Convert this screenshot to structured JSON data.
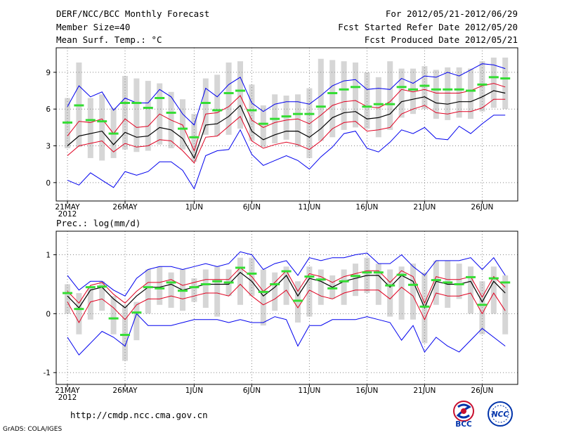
{
  "header": {
    "title": "DERF/NCC/BCC Monthly Forecast",
    "member": "Member Size=40",
    "variable1": "Mean Surf. Temp.: °C",
    "period": "For 2012/05/21-2012/06/29",
    "started": "Fcst Started Refer Date 2012/05/20",
    "produced": "Fcst Produced Date 2012/05/21"
  },
  "footer": {
    "url": "http://cmdp.ncc.cma.gov.cn",
    "credit": "GrADS: COLA/IGES",
    "logo_bcc": "BCC",
    "logo_ncc": "NCC"
  },
  "colors": {
    "mean": "#000000",
    "spread": "#e00020",
    "range": "#0000ee",
    "obs": "#33dd33",
    "box": "#d6d6d6"
  },
  "chart_data": [
    {
      "type": "line",
      "title": "Mean Surf. Temp.: °C",
      "xlabel": "",
      "ylabel": "°C",
      "x_ticks": [
        "21MAY\n2012",
        "26MAY",
        "1JUN",
        "6JUN",
        "11JUN",
        "16JUN",
        "21JUN",
        "26JUN"
      ],
      "x_tick_days": [
        0,
        5,
        11,
        16,
        21,
        26,
        31,
        36
      ],
      "ylim": [
        -1.5,
        11
      ],
      "y_ticks": [
        0,
        3,
        6,
        9
      ],
      "days": 39,
      "series": [
        {
          "name": "ensemble max",
          "values": [
            0.2,
            -0.2,
            0.8,
            0.2,
            -0.4,
            0.9,
            0.6,
            0.9,
            1.7,
            1.7,
            1.0,
            -0.5,
            2.2,
            2.6,
            2.7,
            4.3,
            2.3,
            1.4,
            1.8,
            2.2,
            1.8,
            1.1,
            2.1,
            2.9,
            4.0,
            4.2,
            2.8,
            2.5,
            3.3,
            4.3,
            4.0,
            4.5,
            3.6,
            3.5,
            4.6,
            4.0,
            4.8,
            5.5,
            5.5
          ]
        },
        {
          "name": "ensemble top",
          "values": [
            6.2,
            7.9,
            7.0,
            7.4,
            5.9,
            6.9,
            6.5,
            6.5,
            7.6,
            7.0,
            5.6,
            4.7,
            7.7,
            7.0,
            8.0,
            8.6,
            6.5,
            5.8,
            6.4,
            6.6,
            6.6,
            6.4,
            7.1,
            7.9,
            8.3,
            8.4,
            7.6,
            7.7,
            7.6,
            8.5,
            8.1,
            8.7,
            8.6,
            9.0,
            8.7,
            9.2,
            9.7,
            9.6,
            9.3
          ]
        },
        {
          "name": "ensemble mean",
          "values": [
            3.0,
            3.8,
            4.0,
            4.2,
            3.1,
            4.1,
            3.7,
            3.8,
            4.5,
            4.3,
            3.6,
            2.0,
            4.7,
            4.8,
            5.4,
            6.3,
            4.2,
            3.5,
            3.9,
            4.2,
            4.2,
            3.7,
            4.4,
            5.3,
            5.7,
            5.8,
            5.2,
            5.3,
            5.6,
            6.6,
            6.8,
            7.0,
            6.5,
            6.4,
            6.6,
            6.6,
            7.0,
            7.5,
            7.3
          ]
        },
        {
          "name": "spread upper",
          "values": [
            3.8,
            5.0,
            4.9,
            5.2,
            4.0,
            5.2,
            4.5,
            4.6,
            5.6,
            5.1,
            4.7,
            2.6,
            5.6,
            5.7,
            6.2,
            7.1,
            5.1,
            4.5,
            4.9,
            5.1,
            5.2,
            4.8,
            5.5,
            6.3,
            6.6,
            6.7,
            6.2,
            6.1,
            6.6,
            7.6,
            7.4,
            7.6,
            7.3,
            7.3,
            7.3,
            7.5,
            7.9,
            8.1,
            7.8
          ]
        },
        {
          "name": "spread lower",
          "values": [
            2.2,
            3.0,
            3.2,
            3.4,
            2.5,
            3.2,
            2.9,
            3.0,
            3.5,
            3.4,
            2.6,
            1.6,
            3.7,
            3.8,
            4.6,
            5.4,
            3.4,
            2.8,
            3.1,
            3.3,
            3.1,
            2.7,
            3.4,
            4.4,
            4.9,
            5.0,
            4.2,
            4.3,
            4.5,
            5.6,
            6.0,
            6.3,
            5.7,
            5.6,
            5.8,
            5.8,
            6.1,
            6.8,
            6.8
          ]
        },
        {
          "name": "member mean (green)",
          "values": [
            4.9,
            6.3,
            5.1,
            5.0,
            4.0,
            6.5,
            6.5,
            6.1,
            6.9,
            5.7,
            4.4,
            3.7,
            6.5,
            5.9,
            7.3,
            7.5,
            5.9,
            4.8,
            5.2,
            5.4,
            5.6,
            5.6,
            6.2,
            7.3,
            7.6,
            7.8,
            6.2,
            6.4,
            6.4,
            7.8,
            7.6,
            7.9,
            7.6,
            7.6,
            7.6,
            7.5,
            8.0,
            8.6,
            8.5
          ]
        }
      ],
      "box_ranges": [
        [
          2.8,
          6.9
        ],
        [
          2.9,
          9.8
        ],
        [
          2.0,
          6.9
        ],
        [
          1.8,
          7.2
        ],
        [
          2.0,
          6.1
        ],
        [
          2.7,
          8.7
        ],
        [
          2.5,
          8.5
        ],
        [
          2.6,
          8.3
        ],
        [
          3.1,
          8.1
        ],
        [
          2.8,
          7.4
        ],
        [
          2.7,
          6.8
        ],
        [
          1.7,
          5.6
        ],
        [
          3.9,
          8.5
        ],
        [
          3.8,
          8.8
        ],
        [
          3.9,
          9.8
        ],
        [
          4.4,
          9.9
        ],
        [
          3.4,
          8.0
        ],
        [
          2.9,
          6.3
        ],
        [
          3.2,
          7.2
        ],
        [
          3.5,
          7.1
        ],
        [
          2.9,
          7.2
        ],
        [
          2.0,
          7.7
        ],
        [
          3.4,
          10.1
        ],
        [
          3.7,
          10.0
        ],
        [
          4.3,
          9.9
        ],
        [
          4.5,
          9.8
        ],
        [
          4.4,
          9.0
        ],
        [
          3.7,
          8.6
        ],
        [
          4.3,
          9.9
        ],
        [
          5.3,
          9.3
        ],
        [
          5.6,
          9.3
        ],
        [
          6.0,
          9.5
        ],
        [
          5.2,
          9.2
        ],
        [
          5.1,
          9.4
        ],
        [
          5.3,
          9.4
        ],
        [
          5.2,
          9.3
        ],
        [
          5.8,
          9.9
        ],
        [
          6.1,
          10.2
        ],
        [
          6.0,
          10.2
        ]
      ]
    },
    {
      "type": "line",
      "title": "Prec.: log(mm/d)",
      "xlabel": "",
      "ylabel": "log(mm/d)",
      "x_ticks": [
        "21MAY\n2012",
        "26MAY",
        "1JUN",
        "6JUN",
        "11JUN",
        "16JUN",
        "21JUN",
        "26JUN"
      ],
      "x_tick_days": [
        0,
        5,
        11,
        16,
        21,
        26,
        31,
        36
      ],
      "ylim": [
        -1.2,
        1.4
      ],
      "y_ticks": [
        -1,
        0,
        1
      ],
      "days": 39,
      "series": [
        {
          "name": "ensemble min",
          "values": [
            -0.4,
            -0.7,
            -0.5,
            -0.3,
            -0.4,
            -0.55,
            0.0,
            -0.2,
            -0.2,
            -0.2,
            -0.15,
            -0.1,
            -0.1,
            -0.1,
            -0.15,
            -0.1,
            -0.15,
            -0.15,
            -0.05,
            -0.1,
            -0.55,
            -0.2,
            -0.2,
            -0.1,
            -0.1,
            -0.1,
            -0.05,
            -0.1,
            -0.15,
            -0.45,
            -0.2,
            -0.65,
            -0.4,
            -0.55,
            -0.65,
            -0.45,
            -0.25,
            -0.4,
            -0.55
          ]
        },
        {
          "name": "ensemble max",
          "values": [
            0.65,
            0.4,
            0.55,
            0.55,
            0.4,
            0.3,
            0.6,
            0.75,
            0.8,
            0.8,
            0.75,
            0.8,
            0.85,
            0.8,
            0.85,
            1.05,
            1.0,
            0.75,
            0.85,
            0.9,
            0.65,
            0.95,
            0.9,
            0.95,
            0.95,
            1.0,
            1.03,
            0.85,
            0.85,
            1.0,
            0.8,
            0.65,
            0.9,
            0.9,
            0.9,
            0.95,
            0.75,
            0.95,
            0.65
          ]
        },
        {
          "name": "ensemble mean",
          "values": [
            0.3,
            0.1,
            0.4,
            0.45,
            0.25,
            0.1,
            0.3,
            0.45,
            0.45,
            0.5,
            0.4,
            0.45,
            0.5,
            0.5,
            0.5,
            0.7,
            0.55,
            0.3,
            0.45,
            0.65,
            0.3,
            0.6,
            0.55,
            0.45,
            0.55,
            0.6,
            0.65,
            0.65,
            0.45,
            0.65,
            0.55,
            0.1,
            0.55,
            0.5,
            0.5,
            0.55,
            0.2,
            0.55,
            0.35
          ]
        },
        {
          "name": "spread upper",
          "values": [
            0.38,
            0.18,
            0.48,
            0.53,
            0.33,
            0.18,
            0.38,
            0.53,
            0.53,
            0.58,
            0.48,
            0.53,
            0.58,
            0.58,
            0.58,
            0.78,
            0.63,
            0.38,
            0.53,
            0.73,
            0.38,
            0.68,
            0.63,
            0.53,
            0.63,
            0.68,
            0.73,
            0.73,
            0.53,
            0.73,
            0.63,
            0.18,
            0.63,
            0.58,
            0.58,
            0.63,
            0.28,
            0.63,
            0.45
          ]
        },
        {
          "name": "spread lower",
          "values": [
            0.2,
            -0.15,
            0.2,
            0.25,
            0.1,
            -0.1,
            0.15,
            0.25,
            0.25,
            0.3,
            0.25,
            0.3,
            0.35,
            0.35,
            0.3,
            0.5,
            0.3,
            0.15,
            0.25,
            0.4,
            0.1,
            0.4,
            0.3,
            0.25,
            0.35,
            0.4,
            0.4,
            0.4,
            0.25,
            0.45,
            0.3,
            -0.1,
            0.35,
            0.3,
            0.3,
            0.35,
            0.0,
            0.35,
            0.05
          ]
        },
        {
          "name": "member mean (green)",
          "values": [
            0.35,
            0.08,
            0.45,
            0.46,
            -0.08,
            -0.36,
            0.02,
            0.45,
            0.43,
            0.53,
            0.39,
            0.45,
            0.5,
            0.55,
            0.53,
            0.78,
            0.68,
            0.37,
            0.5,
            0.72,
            0.22,
            0.63,
            0.58,
            0.43,
            0.55,
            0.64,
            0.7,
            0.7,
            0.48,
            0.66,
            0.49,
            0.12,
            0.57,
            0.53,
            0.5,
            0.62,
            0.15,
            0.6,
            0.53
          ]
        }
      ],
      "box_ranges": [
        [
          0.0,
          0.5
        ],
        [
          -0.35,
          0.35
        ],
        [
          -0.1,
          0.45
        ],
        [
          0.05,
          0.55
        ],
        [
          -0.35,
          0.3
        ],
        [
          -0.8,
          0.15
        ],
        [
          -0.45,
          0.2
        ],
        [
          0.0,
          0.75
        ],
        [
          0.15,
          0.8
        ],
        [
          0.1,
          0.7
        ],
        [
          0.05,
          0.75
        ],
        [
          0.2,
          0.6
        ],
        [
          0.1,
          0.75
        ],
        [
          -0.05,
          0.8
        ],
        [
          0.3,
          0.75
        ],
        [
          0.15,
          0.95
        ],
        [
          0.3,
          0.95
        ],
        [
          -0.2,
          0.75
        ],
        [
          0.05,
          0.7
        ],
        [
          0.15,
          0.8
        ],
        [
          -0.15,
          0.55
        ],
        [
          -0.05,
          0.8
        ],
        [
          0.15,
          0.75
        ],
        [
          0.25,
          0.65
        ],
        [
          0.15,
          0.75
        ],
        [
          0.3,
          0.85
        ],
        [
          0.35,
          0.95
        ],
        [
          0.15,
          0.85
        ],
        [
          -0.05,
          0.75
        ],
        [
          -0.1,
          0.8
        ],
        [
          -0.1,
          0.85
        ],
        [
          -0.5,
          0.7
        ],
        [
          0.15,
          0.9
        ],
        [
          0.1,
          0.9
        ],
        [
          0.25,
          0.85
        ],
        [
          0.0,
          0.8
        ],
        [
          -0.35,
          0.55
        ],
        [
          0.0,
          0.8
        ],
        [
          -0.35,
          0.65
        ]
      ]
    }
  ]
}
